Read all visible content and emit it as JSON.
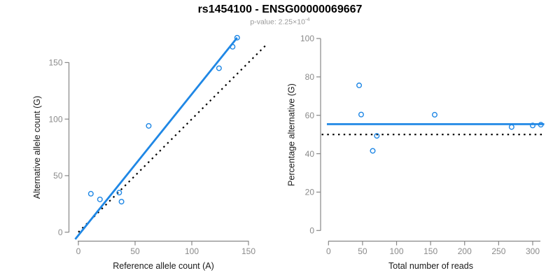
{
  "header": {
    "title": "rs1454100 - ENSG00000069667",
    "pvalue_prefix": "p-value: 2.25×10",
    "pvalue_exponent": "-4"
  },
  "colors": {
    "accent_blue": "#1F87E5",
    "dotted_black": "#000000",
    "axis_gray": "#878787",
    "tick_label_gray": "#8A8A8A",
    "axis_title_black": "#1A1A1A",
    "subtitle_gray": "#989898"
  },
  "chart_data": [
    {
      "type": "scatter",
      "xlabel": "Reference allele count (A)",
      "ylabel": "Alternative allele count (G)",
      "xticks": [
        0,
        50,
        100,
        150
      ],
      "yticks": [
        0,
        50,
        100,
        150
      ],
      "xlim": [
        0,
        150
      ],
      "ylim": [
        0,
        150
      ],
      "grid": false,
      "legend": "none",
      "points": [
        [
          11,
          34
        ],
        [
          19,
          29
        ],
        [
          36,
          35
        ],
        [
          38,
          27
        ],
        [
          62,
          94
        ],
        [
          124,
          145
        ],
        [
          136,
          164
        ],
        [
          140,
          172
        ]
      ],
      "lines": [
        {
          "name": "regression-line",
          "style": "solid",
          "color": "#1F87E5",
          "x": [
            -2.8,
            140
          ],
          "y": [
            -6.2,
            172
          ]
        },
        {
          "name": "identity-line",
          "style": "dotted",
          "color": "#000000",
          "x": [
            0,
            165
          ],
          "y": [
            0,
            165
          ]
        }
      ]
    },
    {
      "type": "scatter",
      "xlabel": "Total number of reads",
      "ylabel": "Percentage alternative (G)",
      "xticks": [
        0,
        50,
        100,
        150,
        200,
        250,
        300
      ],
      "yticks": [
        0,
        20,
        40,
        60,
        80,
        100
      ],
      "xlim": [
        0,
        312
      ],
      "ylim": [
        0,
        100
      ],
      "grid": false,
      "legend": "none",
      "points": [
        [
          45,
          75.6
        ],
        [
          48,
          60.4
        ],
        [
          65,
          41.5
        ],
        [
          71,
          49.3
        ],
        [
          156,
          60.3
        ],
        [
          269,
          53.9
        ],
        [
          300,
          54.7
        ],
        [
          312,
          55.1
        ]
      ],
      "lines": [
        {
          "name": "mean-percentage-line",
          "style": "solid",
          "color": "#1F87E5",
          "x": [
            -2.4,
            317
          ],
          "y": [
            55.4,
            55.4
          ]
        },
        {
          "name": "fifty-percent-reference",
          "style": "dotted",
          "color": "#000000",
          "x": [
            -10,
            317
          ],
          "y": [
            50,
            50
          ]
        }
      ]
    }
  ]
}
